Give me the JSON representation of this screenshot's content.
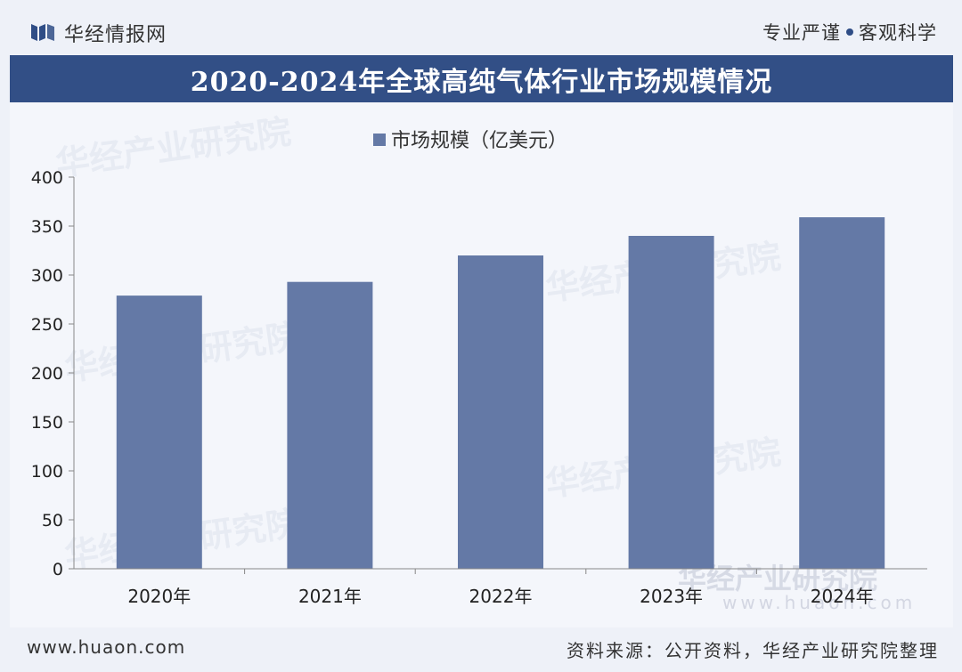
{
  "header": {
    "brand": "华经情报网",
    "slogan_left": "专业严谨",
    "slogan_right": "客观科学"
  },
  "title": "2020-2024年全球高纯气体行业市场规模情况",
  "chart_data": {
    "type": "bar",
    "title": "2020-2024年全球高纯气体行业市场规模情况",
    "categories": [
      "2020年",
      "2021年",
      "2022年",
      "2023年",
      "2024年"
    ],
    "series": [
      {
        "name": "市场规模（亿美元）",
        "values": [
          279,
          293,
          320,
          340,
          359
        ]
      }
    ],
    "ylim": [
      0,
      400
    ],
    "yticks": [
      0,
      50,
      100,
      150,
      200,
      250,
      300,
      350,
      400
    ],
    "xlabel": "",
    "ylabel": "",
    "legend": "top-center",
    "grid": false,
    "bar_color": "#6479a6"
  },
  "watermark": {
    "text": "华经产业研究院",
    "url": "www.huaon.com"
  },
  "footer": {
    "website": "www.huaon.com",
    "source": "资料来源：公开资料，华经产业研究院整理"
  },
  "colors": {
    "accent": "#324f86",
    "bar": "#6479a6"
  }
}
